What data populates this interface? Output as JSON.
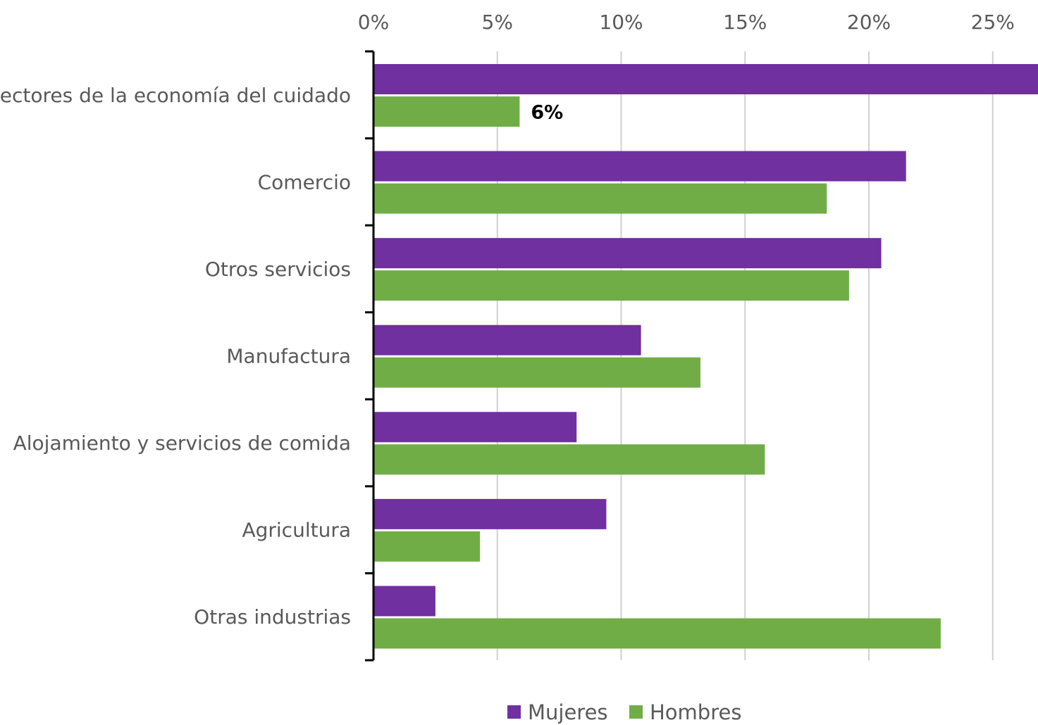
{
  "chart_data": {
    "type": "bar",
    "orientation": "horizontal",
    "categories": [
      "Sectores de la economía del cuidado",
      "Comercio",
      "Otros servicios",
      "Manufactura",
      "Alojamiento y servicios de comida",
      "Agricultura",
      "Otras industrias"
    ],
    "series": [
      {
        "name": "Mujeres",
        "color": "#7030A0",
        "values": [
          27,
          21.5,
          20.5,
          10.8,
          8.2,
          9.4,
          2.5
        ]
      },
      {
        "name": "Hombres",
        "color": "#70AD47",
        "values": [
          5.9,
          18.3,
          19.2,
          13.2,
          15.8,
          4.3,
          22.9
        ]
      }
    ],
    "x_ticks": [
      "0%",
      "5%",
      "10%",
      "15%",
      "20%",
      "25%"
    ],
    "xlim": [
      0,
      27
    ],
    "x_axis_position": "top",
    "grid": true,
    "legend": {
      "placement": "bottom",
      "entries": [
        "Mujeres",
        "Hombres"
      ]
    },
    "data_labels": [
      {
        "series": "Hombres",
        "category": "Sectores de la economía del cuidado",
        "text": "6%"
      }
    ],
    "title": "",
    "xlabel": "",
    "ylabel": ""
  }
}
